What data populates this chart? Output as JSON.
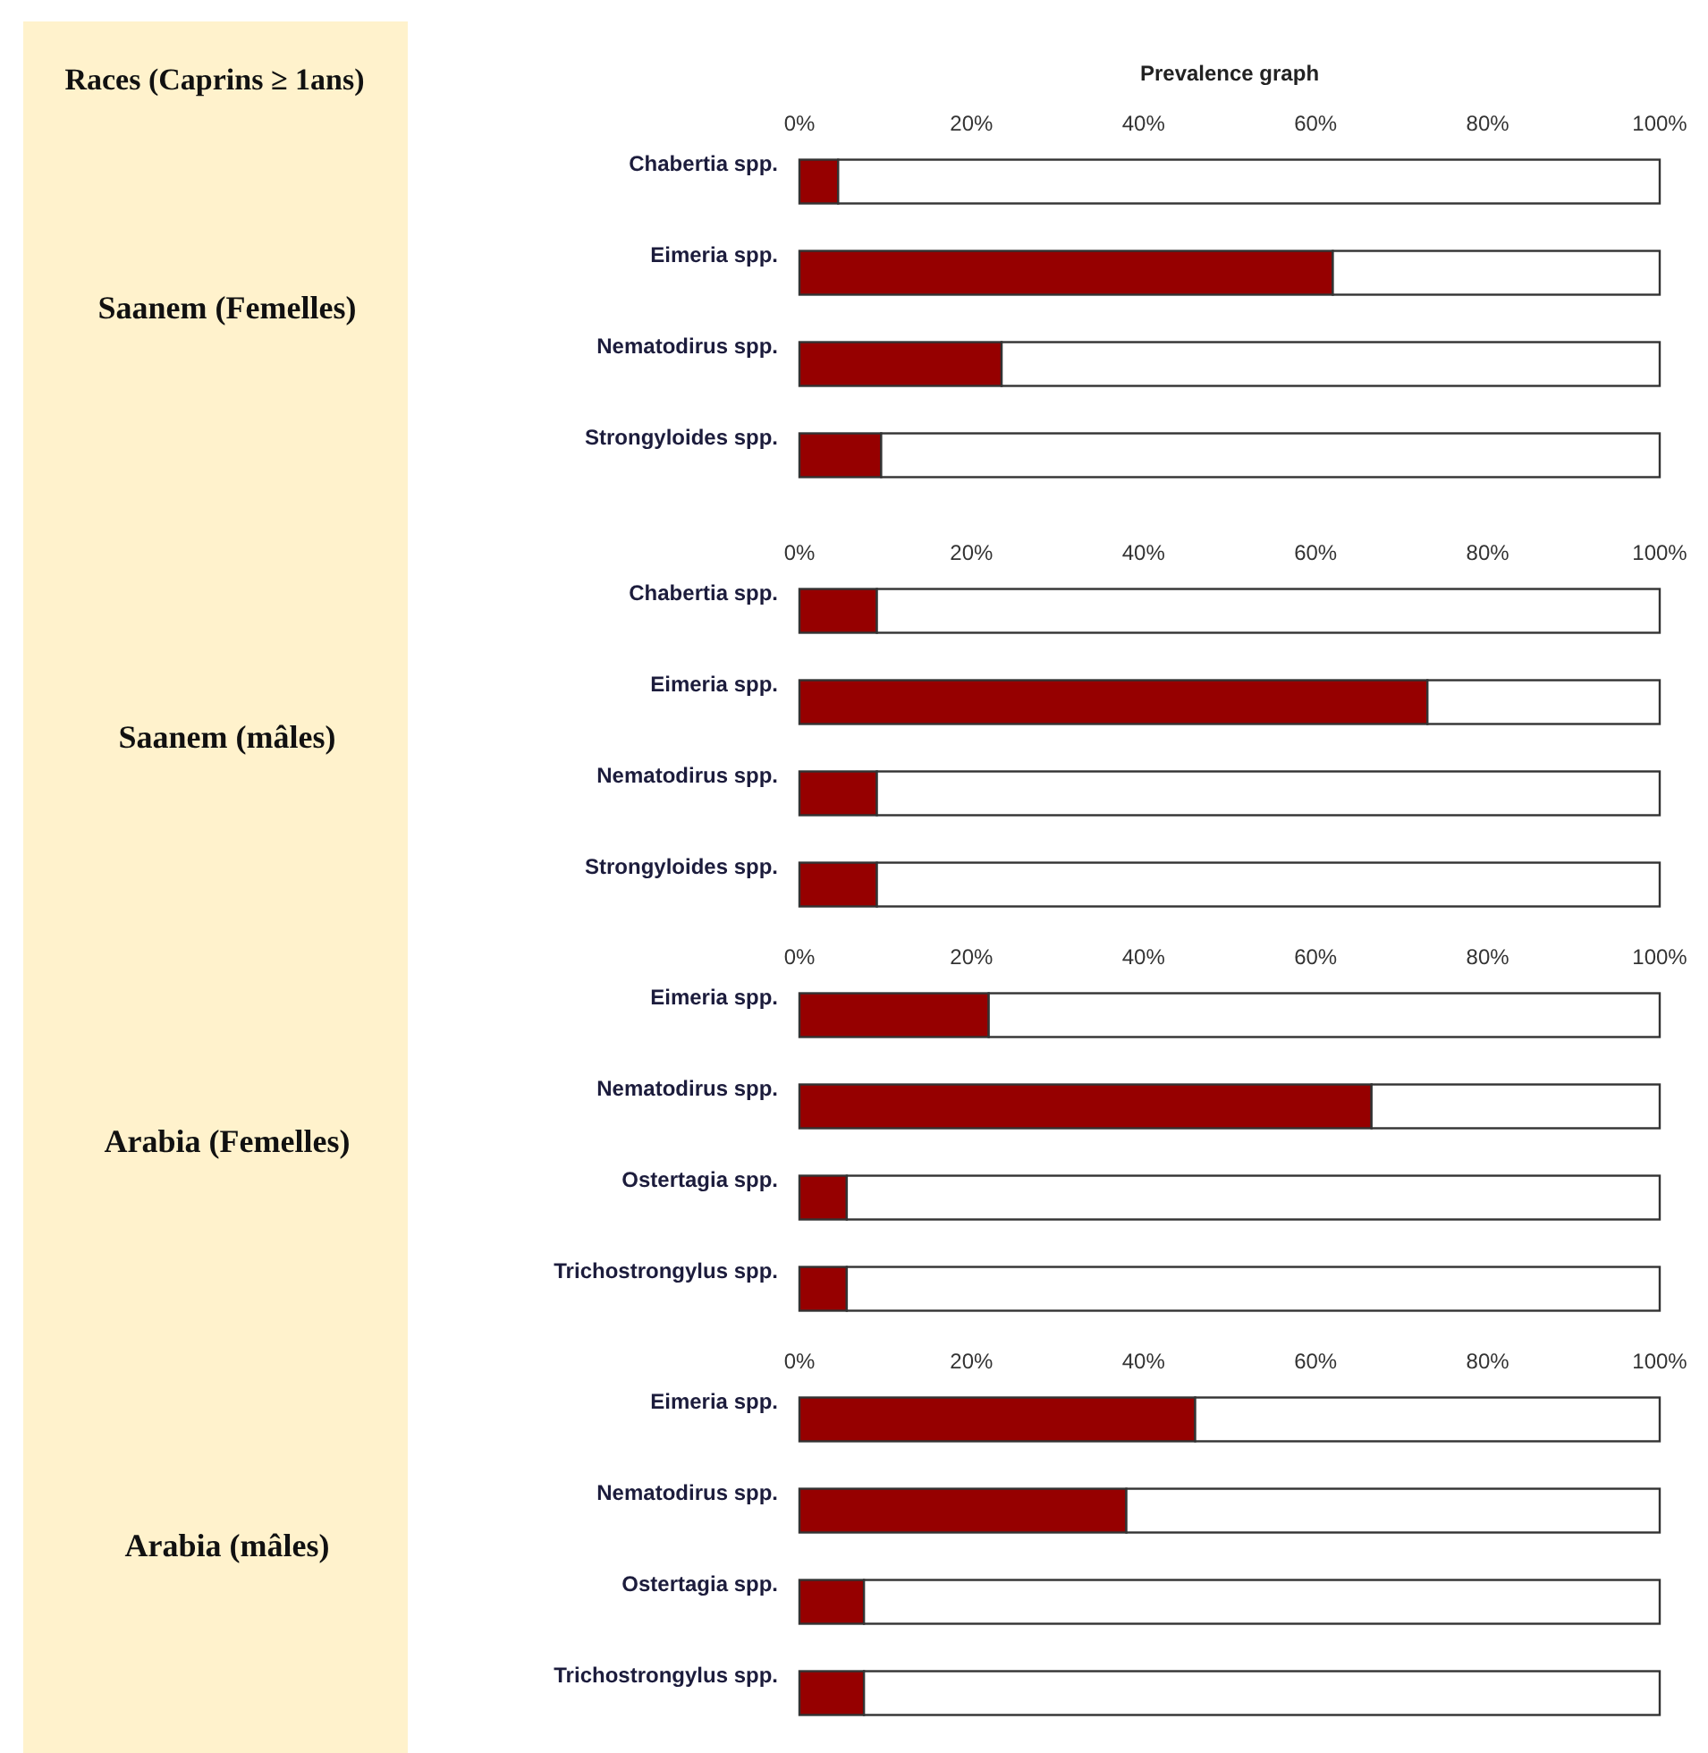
{
  "chart_data": [
    {
      "type": "bar",
      "title": "Prevalence graph",
      "ylabel": "Saanem (Femelles)",
      "annotations": [
        "Races (Caprins ≥ 1ans)"
      ],
      "orientation": "horizontal",
      "stacked": true,
      "categories": [
        "Chabertia spp.",
        "Eimeria spp.",
        "Nematodirus spp.",
        "Strongyloides spp."
      ],
      "xlim": [
        0,
        100
      ],
      "xticks": [
        {
          "value": 0,
          "label": "0%"
        },
        {
          "value": 20,
          "label": "20%"
        },
        {
          "value": 40,
          "label": "40%"
        },
        {
          "value": 60,
          "label": "60%"
        },
        {
          "value": 80,
          "label": "80%"
        },
        {
          "value": 100,
          "label": "100%"
        }
      ],
      "series": [
        {
          "color": "#960000",
          "values": [
            4.5,
            62,
            23.5,
            9.5
          ]
        },
        {
          "color": "#ffffff",
          "values": [
            95.5,
            38,
            76.5,
            90.5
          ]
        }
      ]
    },
    {
      "type": "bar",
      "ylabel": "Saanem (mâles)",
      "orientation": "horizontal",
      "stacked": true,
      "categories": [
        "Chabertia spp.",
        "Eimeria spp.",
        "Nematodirus spp.",
        "Strongyloides spp."
      ],
      "xlim": [
        0,
        100
      ],
      "xticks": [
        {
          "value": 0,
          "label": "0%"
        },
        {
          "value": 20,
          "label": "20%"
        },
        {
          "value": 40,
          "label": "40%"
        },
        {
          "value": 60,
          "label": "60%"
        },
        {
          "value": 80,
          "label": "80%"
        },
        {
          "value": 100,
          "label": "100%"
        }
      ],
      "series": [
        {
          "color": "#960000",
          "values": [
            9,
            73,
            9,
            9
          ]
        },
        {
          "color": "#ffffff",
          "values": [
            91,
            27,
            91,
            91
          ]
        }
      ]
    },
    {
      "type": "bar",
      "ylabel": "Arabia (Femelles)",
      "orientation": "horizontal",
      "stacked": true,
      "categories": [
        "Eimeria spp.",
        "Nematodirus spp.",
        "Ostertagia spp.",
        "Trichostrongylus spp."
      ],
      "xlim": [
        0,
        100
      ],
      "xticks": [
        {
          "value": 0,
          "label": "0%"
        },
        {
          "value": 20,
          "label": "20%"
        },
        {
          "value": 40,
          "label": "40%"
        },
        {
          "value": 60,
          "label": "60%"
        },
        {
          "value": 80,
          "label": "80%"
        },
        {
          "value": 100,
          "label": "100%"
        }
      ],
      "series": [
        {
          "color": "#960000",
          "values": [
            22,
            66.5,
            5.5,
            5.5
          ]
        },
        {
          "color": "#ffffff",
          "values": [
            78,
            33.5,
            94.5,
            94.5
          ]
        }
      ]
    },
    {
      "type": "bar",
      "ylabel": "Arabia (mâles)",
      "orientation": "horizontal",
      "stacked": true,
      "categories": [
        "Eimeria spp.",
        "Nematodirus spp.",
        "Ostertagia spp.",
        "Trichostrongylus spp."
      ],
      "xlim": [
        0,
        100
      ],
      "xticks": [
        {
          "value": 0,
          "label": "0%"
        },
        {
          "value": 20,
          "label": "20%"
        },
        {
          "value": 40,
          "label": "40%"
        },
        {
          "value": 60,
          "label": "60%"
        },
        {
          "value": 80,
          "label": "80%"
        },
        {
          "value": 100,
          "label": "100%"
        }
      ],
      "series": [
        {
          "color": "#960000",
          "values": [
            46,
            38,
            7.5,
            7.5
          ]
        },
        {
          "color": "#ffffff",
          "values": [
            54,
            62,
            92.5,
            92.5
          ]
        }
      ]
    }
  ]
}
